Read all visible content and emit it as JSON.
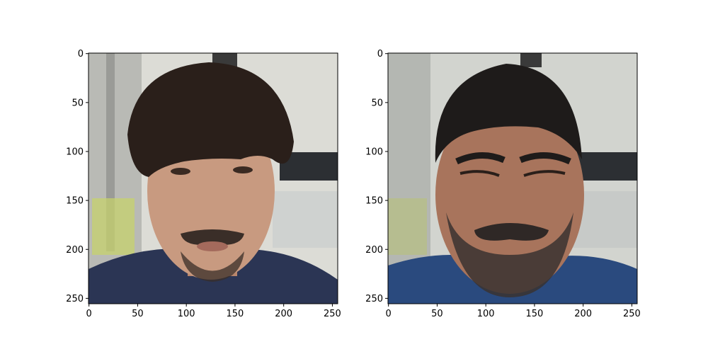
{
  "chart_data": [
    {
      "type": "image",
      "title": "",
      "xlabel": "",
      "ylabel": "",
      "xlim": [
        0,
        255
      ],
      "ylim": [
        255,
        0
      ],
      "xticks": [
        0,
        50,
        100,
        150,
        200,
        250
      ],
      "yticks": [
        0,
        50,
        100,
        150,
        200,
        250
      ],
      "grid": false,
      "content": "photo-young-man",
      "colors": {
        "background": "#dcdcd6",
        "hair": "#2a1f1a",
        "skin": "#c89a80",
        "shirt": "#2b3554",
        "beard": "#3a2e28"
      }
    },
    {
      "type": "image",
      "title": "",
      "xlabel": "",
      "ylabel": "",
      "xlim": [
        0,
        255
      ],
      "ylim": [
        255,
        0
      ],
      "xticks": [
        0,
        50,
        100,
        150,
        200,
        250
      ],
      "yticks": [
        0,
        50,
        100,
        150,
        200,
        250
      ],
      "grid": false,
      "content": "photo-older-man",
      "colors": {
        "background": "#d2d4cf",
        "hair": "#1e1b1a",
        "skin": "#a8745c",
        "shirt": "#2a4a7e",
        "beard": "#3a3330"
      }
    }
  ]
}
